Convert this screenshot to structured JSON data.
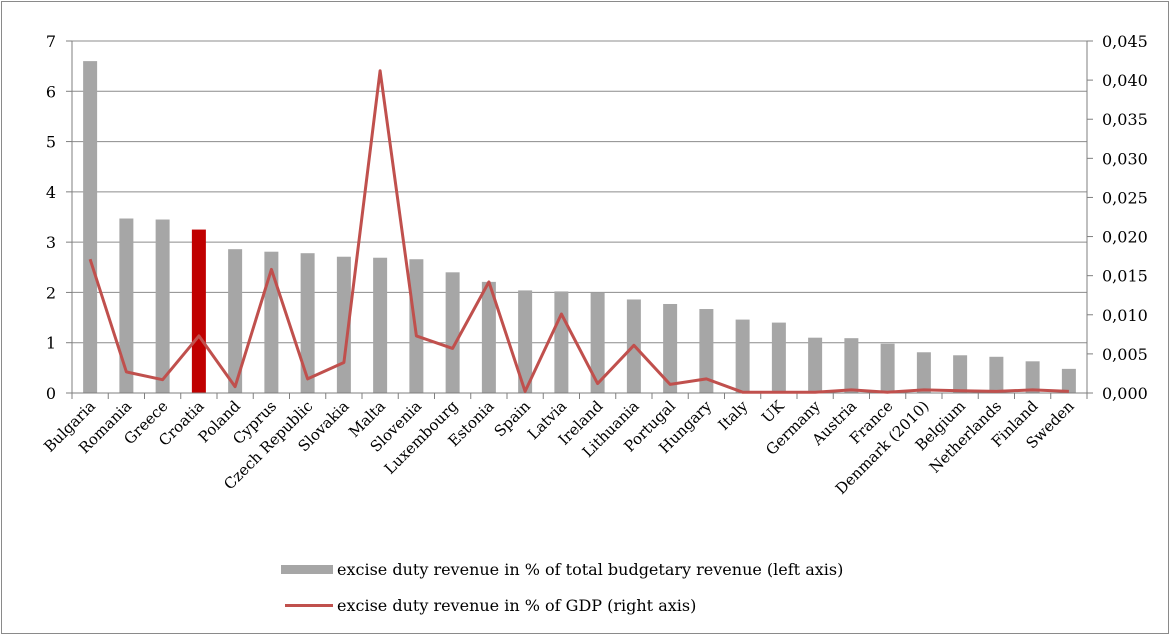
{
  "chart_data": {
    "type": "bar",
    "categories": [
      "Bulgaria",
      "Romania",
      "Greece",
      "Croatia",
      "Poland",
      "Cyprus",
      "Czech Republic",
      "Slovakia",
      "Malta",
      "Slovenia",
      "Luxembourg",
      "Estonia",
      "Spain",
      "Latvia",
      "Ireland",
      "Lithuania",
      "Portugal",
      "Hungary",
      "Italy",
      "UK",
      "Germany",
      "Austria",
      "France",
      "Denmark (2010)",
      "Belgium",
      "Netherlands",
      "Finland",
      "Sweden"
    ],
    "series": [
      {
        "name": "excise duty revenue in % of total budgetary revenue (left axis)",
        "type": "bar",
        "axis": "left",
        "values": [
          6.6,
          3.47,
          3.45,
          3.25,
          2.86,
          2.81,
          2.78,
          2.71,
          2.69,
          2.66,
          2.4,
          2.21,
          2.04,
          2.02,
          2.0,
          1.86,
          1.77,
          1.67,
          1.46,
          1.4,
          1.1,
          1.09,
          0.98,
          0.81,
          0.75,
          0.72,
          0.63,
          0.48
        ],
        "highlight": {
          "category": "Croatia",
          "color": "#c00000"
        }
      },
      {
        "name": "excise duty revenue in % of GDP (right axis)",
        "type": "line",
        "axis": "right",
        "values": [
          0.0171,
          0.0027,
          0.0017,
          0.0073,
          0.0008,
          0.0158,
          0.0018,
          0.0039,
          0.0412,
          0.0073,
          0.0057,
          0.0142,
          0.0002,
          0.0101,
          0.0012,
          0.0061,
          0.0011,
          0.0018,
          0.0001,
          0.0001,
          0.0001,
          0.0004,
          0.0001,
          0.0004,
          0.0003,
          0.0002,
          0.0004,
          0.0002
        ]
      }
    ],
    "y_left": {
      "range": [
        0,
        7
      ],
      "ticks": [
        "0",
        "1",
        "2",
        "3",
        "4",
        "5",
        "6",
        "7"
      ]
    },
    "y_right": {
      "range": [
        0,
        0.045
      ],
      "ticks": [
        "0,000",
        "0,005",
        "0,010",
        "0,015",
        "0,020",
        "0,025",
        "0,030",
        "0,035",
        "0,040",
        "0,045"
      ]
    },
    "grid": true,
    "legend_position": "bottom",
    "colors": {
      "bar": "#a6a6a6",
      "highlight": "#c00000",
      "line": "#c0504d",
      "grid": "#8c8c8c",
      "axis": "#7f7f7f"
    }
  }
}
